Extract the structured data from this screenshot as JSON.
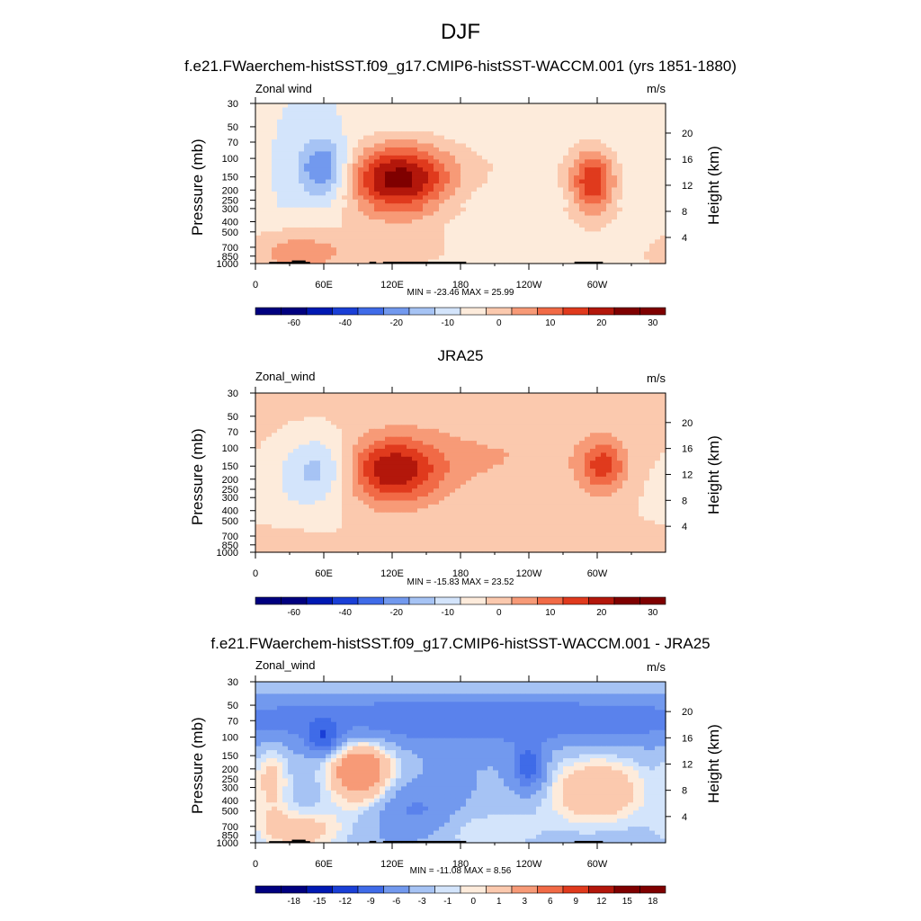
{
  "figure": {
    "title": "DJF",
    "colors": {
      "abs": [
        "#00007f",
        "#0019b3",
        "#1a3fd6",
        "#3f6be8",
        "#7299ee",
        "#a6c3f4",
        "#d3e4fb",
        "#fdebdb",
        "#fbc9ae",
        "#f79a77",
        "#f16a46",
        "#e03a1d",
        "#b3170b",
        "#7f0000"
      ],
      "diff": [
        "#00007f",
        "#0019b3",
        "#1a3fd6",
        "#3f6be8",
        "#7299ee",
        "#a6c3f4",
        "#d3e4fb",
        "#fdebdb",
        "#fbc9ae",
        "#f79a77",
        "#f16a46",
        "#e03a1d",
        "#b3170b",
        "#7f0000"
      ],
      "topography": "#000000"
    }
  },
  "chart_data": [
    {
      "type": "heatmap",
      "panel_title": "f.e21.FWaerchem-histSST.f09_g17.CMIP6-histSST-WACCM.001 (yrs 1851-1880)",
      "variable_label": "Zonal wind",
      "units": "m/s",
      "xlabel": "",
      "ylabel": "Pressure (mb)",
      "ylabel_right": "Height (km)",
      "x_ticks": [
        "0",
        "60E",
        "120E",
        "180",
        "120W",
        "60W"
      ],
      "y_ticks": [
        "30",
        "50",
        "70",
        "100",
        "150",
        "200",
        "250",
        "300",
        "400",
        "500",
        "700",
        "850",
        "1000"
      ],
      "y_right_ticks": [
        "20",
        "16",
        "12",
        "8",
        "4"
      ],
      "min_max": "MIN = -23.46  MAX =  25.99",
      "min": -23.46,
      "max": 25.99,
      "colorbar_labels": [
        "-60",
        "-40",
        "-20",
        "-10",
        "0",
        "10",
        "20",
        "30"
      ],
      "features": [
        {
          "lon": 125,
          "p": 150,
          "value": 25.99
        },
        {
          "lon": 295,
          "p": 150,
          "value": 18
        },
        {
          "lon": 60,
          "p": 120,
          "value": -23.46
        },
        {
          "lon": 40,
          "p": 800,
          "value": 8
        }
      ]
    },
    {
      "type": "heatmap",
      "panel_title": "JRA25",
      "variable_label": "Zonal_wind",
      "units": "m/s",
      "xlabel": "",
      "ylabel": "Pressure (mb)",
      "ylabel_right": "Height (km)",
      "x_ticks": [
        "0",
        "60E",
        "120E",
        "180",
        "120W",
        "60W"
      ],
      "y_ticks": [
        "30",
        "50",
        "70",
        "100",
        "150",
        "200",
        "250",
        "300",
        "400",
        "500",
        "700",
        "850",
        "1000"
      ],
      "y_right_ticks": [
        "20",
        "16",
        "12",
        "8",
        "4"
      ],
      "min_max": "MIN = -15.83  MAX =  23.52",
      "min": -15.83,
      "max": 23.52,
      "colorbar_labels": [
        "-60",
        "-40",
        "-20",
        "-10",
        "0",
        "10",
        "20",
        "30"
      ],
      "features": [
        {
          "lon": 120,
          "p": 160,
          "value": 23.52
        },
        {
          "lon": 305,
          "p": 150,
          "value": 16
        },
        {
          "lon": 58,
          "p": 150,
          "value": -15.83
        }
      ]
    },
    {
      "type": "heatmap",
      "panel_title": "f.e21.FWaerchem-histSST.f09_g17.CMIP6-histSST-WACCM.001 - JRA25",
      "variable_label": "Zonal_wind",
      "units": "m/s",
      "xlabel": "",
      "ylabel": "Pressure (mb)",
      "ylabel_right": "Height (km)",
      "x_ticks": [
        "0",
        "60E",
        "120E",
        "180",
        "120W",
        "60W"
      ],
      "y_ticks": [
        "30",
        "50",
        "70",
        "100",
        "150",
        "200",
        "250",
        "300",
        "400",
        "500",
        "700",
        "850",
        "1000"
      ],
      "y_right_ticks": [
        "20",
        "16",
        "12",
        "8",
        "4"
      ],
      "min_max": "MIN = -11.08  MAX =   8.56",
      "min": -11.08,
      "max": 8.56,
      "colorbar_labels": [
        "-18",
        "-15",
        "-12",
        "-9",
        "-6",
        "-3",
        "-1",
        "0",
        "1",
        "3",
        "6",
        "9",
        "12",
        "15",
        "18"
      ],
      "features": [
        {
          "lon": 90,
          "p": 200,
          "value": 8.56
        },
        {
          "lon": 240,
          "p": 200,
          "value": -11.08
        },
        {
          "lon": 60,
          "p": 100,
          "value": -9
        }
      ]
    }
  ]
}
